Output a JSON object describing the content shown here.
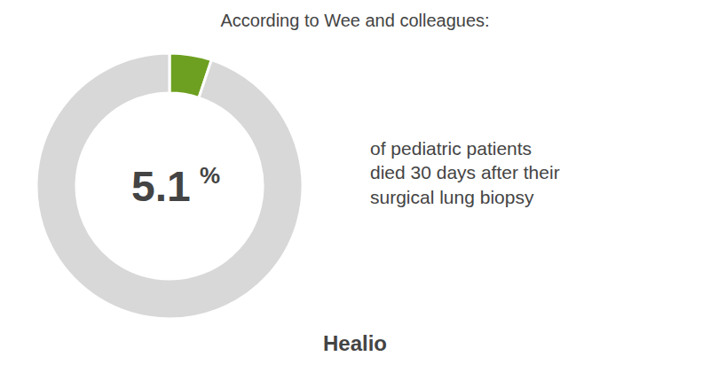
{
  "chart_data": {
    "type": "pie",
    "title": "According to Wee and colleagues:",
    "values": [
      5.1,
      94.9
    ],
    "colors": [
      "#6da020",
      "#d8d8d8"
    ],
    "data_labels": false,
    "annotations": [
      "5.1",
      "%",
      "of pediatric patients",
      "died 30 days after their",
      "surgical lung biopsy",
      "Healio"
    ]
  }
}
